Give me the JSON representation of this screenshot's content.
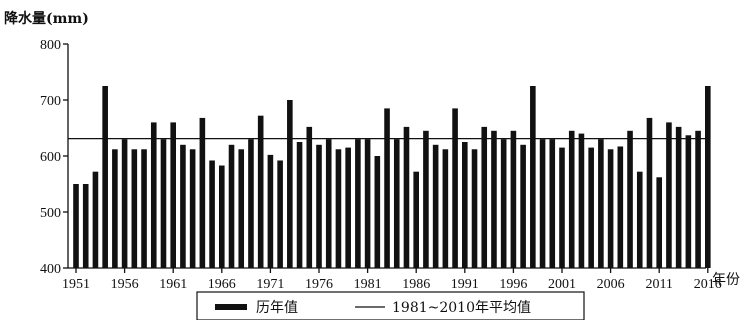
{
  "chart_data": {
    "type": "bar",
    "ylabel": "降水量(mm)",
    "xlabel": "年份",
    "ylim": [
      400,
      800
    ],
    "yticks": [
      400,
      500,
      600,
      700,
      800
    ],
    "xtick_labels": [
      "1951",
      "1956",
      "1961",
      "1966",
      "1971",
      "1976",
      "1981",
      "1986",
      "1991",
      "1996",
      "2001",
      "2006",
      "2011",
      "2016"
    ],
    "grid": false,
    "legend_position": "bottom",
    "categories": [
      1951,
      1952,
      1953,
      1954,
      1955,
      1956,
      1957,
      1958,
      1959,
      1960,
      1961,
      1962,
      1963,
      1964,
      1965,
      1966,
      1967,
      1968,
      1969,
      1970,
      1971,
      1972,
      1973,
      1974,
      1975,
      1976,
      1977,
      1978,
      1979,
      1980,
      1981,
      1982,
      1983,
      1984,
      1985,
      1986,
      1987,
      1988,
      1989,
      1990,
      1991,
      1992,
      1993,
      1994,
      1995,
      1996,
      1997,
      1998,
      1999,
      2000,
      2001,
      2002,
      2003,
      2004,
      2005,
      2006,
      2007,
      2008,
      2009,
      2010,
      2011,
      2012,
      2013,
      2014,
      2015,
      2016
    ],
    "series": [
      {
        "name": "历年值",
        "values": [
          550,
          550,
          572,
          725,
          612,
          630,
          612,
          612,
          660,
          630,
          660,
          620,
          612,
          668,
          592,
          583,
          620,
          612,
          630,
          672,
          602,
          592,
          700,
          625,
          652,
          620,
          630,
          612,
          615,
          630,
          630,
          600,
          685,
          630,
          652,
          572,
          645,
          620,
          612,
          685,
          625,
          612,
          652,
          645,
          630,
          645,
          620,
          725,
          630,
          630,
          615,
          645,
          640,
          615,
          630,
          612,
          617,
          645,
          572,
          668,
          562,
          660,
          652,
          637,
          645,
          725
        ]
      }
    ],
    "reference_line": {
      "name": "1981~2010年平均值",
      "value": 631
    }
  }
}
